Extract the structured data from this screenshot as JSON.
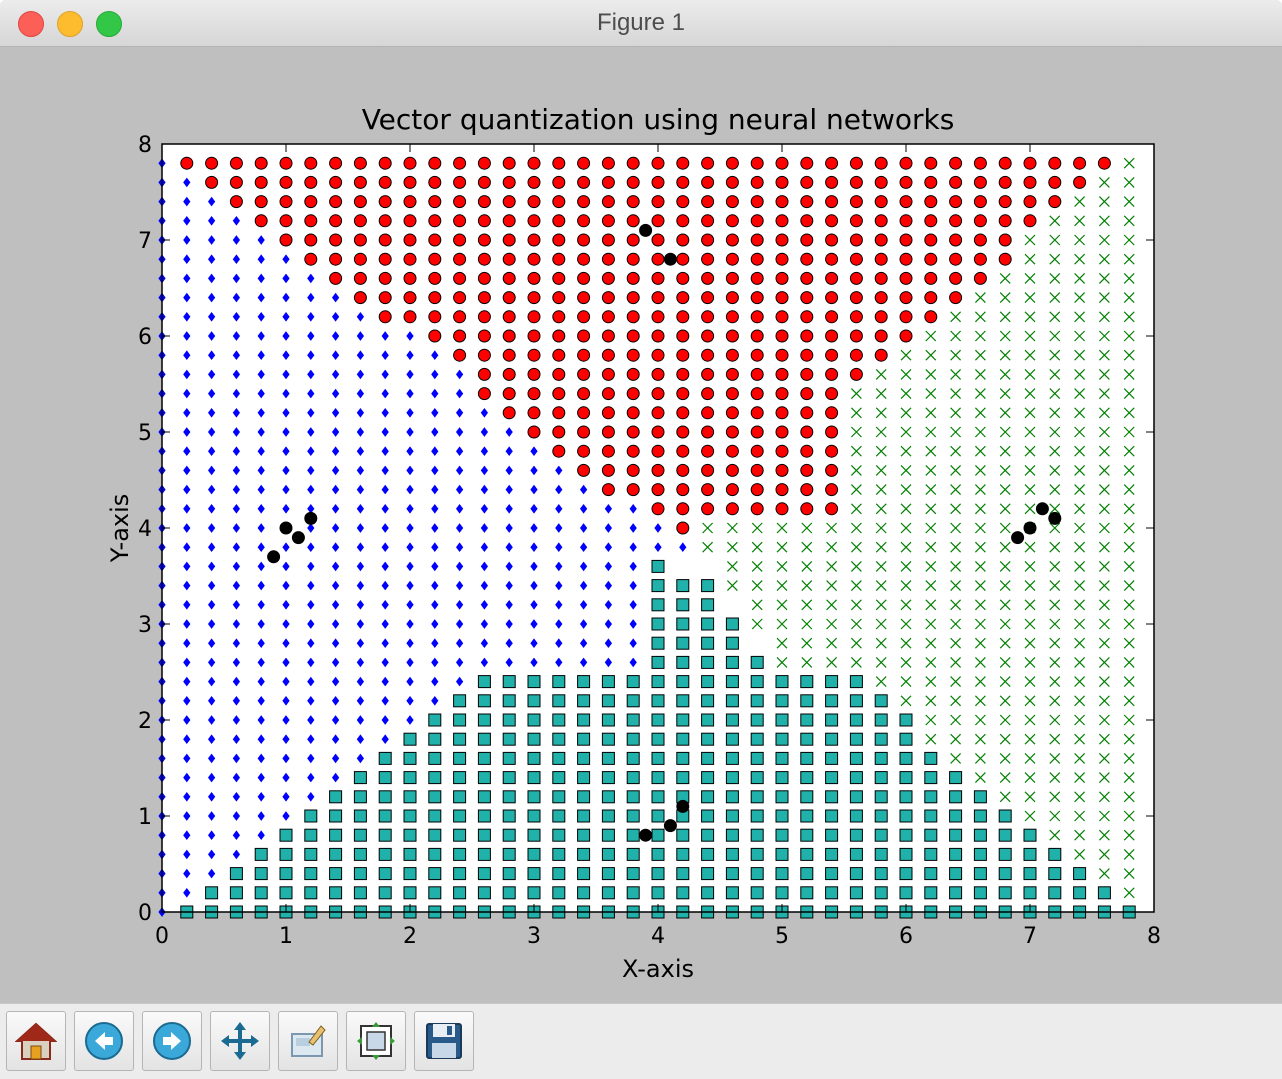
{
  "window": {
    "title": "Figure 1"
  },
  "toolbar": {
    "buttons": [
      {
        "icon": "home-icon"
      },
      {
        "icon": "back-arrow-icon"
      },
      {
        "icon": "forward-arrow-icon"
      },
      {
        "icon": "pan-icon"
      },
      {
        "icon": "zoom-rect-icon"
      },
      {
        "icon": "subplots-config-icon"
      },
      {
        "icon": "save-icon"
      }
    ]
  },
  "chart_data": {
    "type": "scatter",
    "title": "Vector quantization using neural networks",
    "xlabel": "X-axis",
    "ylabel": "Y-axis",
    "xlim": [
      0,
      8
    ],
    "ylim": [
      0,
      8
    ],
    "xticks": [
      "0",
      "1",
      "2",
      "3",
      "4",
      "5",
      "6",
      "7",
      "8"
    ],
    "yticks": [
      "0",
      "1",
      "2",
      "3",
      "4",
      "5",
      "6",
      "7",
      "8"
    ],
    "grid": false,
    "legend": "none",
    "point_grid": {
      "x_start": 0,
      "x_step": 0.2,
      "columns": 40,
      "y_start": 0,
      "y_step": 0.2,
      "rows": 40
    },
    "series": [
      {
        "marker": "circle",
        "color": "#ff0000",
        "rows": [
          {
            "y": 7.8,
            "x_from": 0.2,
            "x_to": 7.6
          },
          {
            "y": 7.6,
            "x_from": 0.4,
            "x_to": 7.4
          },
          {
            "y": 7.4,
            "x_from": 0.6,
            "x_to": 7.2
          },
          {
            "y": 7.2,
            "x_from": 0.8,
            "x_to": 7.0
          },
          {
            "y": 7.0,
            "x_from": 1.0,
            "x_to": 6.8
          },
          {
            "y": 6.8,
            "x_from": 1.2,
            "x_to": 6.8
          },
          {
            "y": 6.6,
            "x_from": 1.4,
            "x_to": 6.6
          },
          {
            "y": 6.4,
            "x_from": 1.6,
            "x_to": 6.4
          },
          {
            "y": 6.2,
            "x_from": 1.8,
            "x_to": 6.2
          },
          {
            "y": 6.0,
            "x_from": 2.2,
            "x_to": 6.0
          },
          {
            "y": 5.8,
            "x_from": 2.4,
            "x_to": 5.8
          },
          {
            "y": 5.6,
            "x_from": 2.6,
            "x_to": 5.6
          },
          {
            "y": 5.4,
            "x_from": 2.6,
            "x_to": 5.4
          },
          {
            "y": 5.2,
            "x_from": 2.8,
            "x_to": 5.4
          },
          {
            "y": 5.0,
            "x_from": 3.0,
            "x_to": 5.4
          },
          {
            "y": 4.8,
            "x_from": 3.2,
            "x_to": 5.4
          },
          {
            "y": 4.6,
            "x_from": 3.4,
            "x_to": 5.4
          },
          {
            "y": 4.4,
            "x_from": 3.6,
            "x_to": 5.4
          },
          {
            "y": 4.2,
            "x_from": 4.0,
            "x_to": 5.4
          },
          {
            "y": 4.0,
            "x_from": 4.2,
            "x_to": 4.2
          }
        ]
      },
      {
        "marker": "x",
        "color": "#008000",
        "rows": [
          {
            "y": 7.8,
            "x_from": 7.8,
            "x_to": 7.8
          },
          {
            "y": 7.6,
            "x_from": 7.6,
            "x_to": 7.8
          },
          {
            "y": 7.4,
            "x_from": 7.4,
            "x_to": 7.8
          },
          {
            "y": 7.2,
            "x_from": 7.2,
            "x_to": 7.8
          },
          {
            "y": 7.0,
            "x_from": 7.0,
            "x_to": 7.8
          },
          {
            "y": 6.8,
            "x_from": 7.0,
            "x_to": 7.8
          },
          {
            "y": 6.6,
            "x_from": 6.8,
            "x_to": 7.8
          },
          {
            "y": 6.4,
            "x_from": 6.6,
            "x_to": 7.8
          },
          {
            "y": 6.2,
            "x_from": 6.4,
            "x_to": 7.8
          },
          {
            "y": 6.0,
            "x_from": 6.2,
            "x_to": 7.8
          },
          {
            "y": 5.8,
            "x_from": 6.0,
            "x_to": 7.8
          },
          {
            "y": 5.6,
            "x_from": 5.8,
            "x_to": 7.8
          },
          {
            "y": 5.4,
            "x_from": 5.6,
            "x_to": 7.8
          },
          {
            "y": 5.2,
            "x_from": 5.6,
            "x_to": 7.8
          },
          {
            "y": 5.0,
            "x_from": 5.6,
            "x_to": 7.8
          },
          {
            "y": 4.8,
            "x_from": 5.6,
            "x_to": 7.8
          },
          {
            "y": 4.6,
            "x_from": 5.6,
            "x_to": 7.8
          },
          {
            "y": 4.4,
            "x_from": 5.6,
            "x_to": 7.8
          },
          {
            "y": 4.2,
            "x_from": 5.6,
            "x_to": 7.8
          },
          {
            "y": 4.0,
            "x_from": 4.4,
            "x_to": 7.8
          },
          {
            "y": 3.8,
            "x_from": 4.4,
            "x_to": 7.8
          },
          {
            "y": 3.6,
            "x_from": 4.6,
            "x_to": 7.8
          },
          {
            "y": 3.4,
            "x_from": 4.6,
            "x_to": 7.8
          },
          {
            "y": 3.2,
            "x_from": 4.8,
            "x_to": 7.8
          },
          {
            "y": 3.0,
            "x_from": 4.8,
            "x_to": 7.8
          },
          {
            "y": 2.8,
            "x_from": 5.0,
            "x_to": 7.8
          },
          {
            "y": 2.6,
            "x_from": 5.0,
            "x_to": 7.8
          },
          {
            "y": 2.4,
            "x_from": 5.8,
            "x_to": 7.8
          },
          {
            "y": 2.2,
            "x_from": 6.0,
            "x_to": 7.8
          },
          {
            "y": 2.0,
            "x_from": 6.2,
            "x_to": 7.8
          },
          {
            "y": 1.8,
            "x_from": 6.2,
            "x_to": 7.8
          },
          {
            "y": 1.6,
            "x_from": 6.4,
            "x_to": 7.8
          },
          {
            "y": 1.4,
            "x_from": 6.6,
            "x_to": 7.8
          },
          {
            "y": 1.2,
            "x_from": 6.8,
            "x_to": 7.8
          },
          {
            "y": 1.0,
            "x_from": 7.0,
            "x_to": 7.8
          },
          {
            "y": 0.8,
            "x_from": 7.2,
            "x_to": 7.8
          },
          {
            "y": 0.6,
            "x_from": 7.4,
            "x_to": 7.8
          },
          {
            "y": 0.4,
            "x_from": 7.6,
            "x_to": 7.8
          },
          {
            "y": 0.2,
            "x_from": 7.8,
            "x_to": 7.8
          }
        ]
      },
      {
        "marker": "square",
        "color": "#20b2aa",
        "rows": [
          {
            "y": 3.6,
            "x_from": 4.0,
            "x_to": 4.0
          },
          {
            "y": 3.4,
            "x_from": 4.0,
            "x_to": 4.4
          },
          {
            "y": 3.2,
            "x_from": 4.0,
            "x_to": 4.4
          },
          {
            "y": 3.0,
            "x_from": 4.0,
            "x_to": 4.6
          },
          {
            "y": 2.8,
            "x_from": 4.0,
            "x_to": 4.6
          },
          {
            "y": 2.6,
            "x_from": 4.0,
            "x_to": 4.8
          },
          {
            "y": 2.4,
            "x_from": 2.6,
            "x_to": 5.6
          },
          {
            "y": 2.2,
            "x_from": 2.4,
            "x_to": 5.8
          },
          {
            "y": 2.0,
            "x_from": 2.2,
            "x_to": 6.0
          },
          {
            "y": 1.8,
            "x_from": 2.0,
            "x_to": 6.0
          },
          {
            "y": 1.6,
            "x_from": 1.8,
            "x_to": 6.2
          },
          {
            "y": 1.4,
            "x_from": 1.6,
            "x_to": 6.4
          },
          {
            "y": 1.2,
            "x_from": 1.4,
            "x_to": 6.6
          },
          {
            "y": 1.0,
            "x_from": 1.2,
            "x_to": 6.8
          },
          {
            "y": 0.8,
            "x_from": 1.0,
            "x_to": 7.0
          },
          {
            "y": 0.6,
            "x_from": 0.8,
            "x_to": 7.2
          },
          {
            "y": 0.4,
            "x_from": 0.6,
            "x_to": 7.4
          },
          {
            "y": 0.2,
            "x_from": 0.4,
            "x_to": 7.6
          },
          {
            "y": 0.0,
            "x_from": 0.2,
            "x_to": 7.8
          }
        ]
      },
      {
        "marker": "diamond",
        "color": "#0000ff",
        "rows": [
          {
            "y": 7.8,
            "x_from": 0.0,
            "x_to": 0.0
          },
          {
            "y": 7.6,
            "x_from": 0.0,
            "x_to": 0.2
          },
          {
            "y": 7.4,
            "x_from": 0.0,
            "x_to": 0.4
          },
          {
            "y": 7.2,
            "x_from": 0.0,
            "x_to": 0.6
          },
          {
            "y": 7.0,
            "x_from": 0.0,
            "x_to": 0.8
          },
          {
            "y": 6.8,
            "x_from": 0.0,
            "x_to": 1.0
          },
          {
            "y": 6.6,
            "x_from": 0.0,
            "x_to": 1.2
          },
          {
            "y": 6.4,
            "x_from": 0.0,
            "x_to": 1.4
          },
          {
            "y": 6.2,
            "x_from": 0.0,
            "x_to": 1.6
          },
          {
            "y": 6.0,
            "x_from": 0.0,
            "x_to": 2.0
          },
          {
            "y": 5.8,
            "x_from": 0.0,
            "x_to": 2.2
          },
          {
            "y": 5.6,
            "x_from": 0.0,
            "x_to": 2.4
          },
          {
            "y": 5.4,
            "x_from": 0.0,
            "x_to": 2.4
          },
          {
            "y": 5.2,
            "x_from": 0.0,
            "x_to": 2.6
          },
          {
            "y": 5.0,
            "x_from": 0.0,
            "x_to": 2.8
          },
          {
            "y": 4.8,
            "x_from": 0.0,
            "x_to": 3.0
          },
          {
            "y": 4.6,
            "x_from": 0.0,
            "x_to": 3.2
          },
          {
            "y": 4.4,
            "x_from": 0.0,
            "x_to": 3.4
          },
          {
            "y": 4.2,
            "x_from": 0.0,
            "x_to": 3.8
          },
          {
            "y": 4.0,
            "x_from": 0.0,
            "x_to": 4.0
          },
          {
            "y": 3.8,
            "x_from": 0.0,
            "x_to": 4.2
          },
          {
            "y": 3.6,
            "x_from": 0.0,
            "x_to": 3.8
          },
          {
            "y": 3.4,
            "x_from": 0.0,
            "x_to": 3.8
          },
          {
            "y": 3.2,
            "x_from": 0.0,
            "x_to": 3.8
          },
          {
            "y": 3.0,
            "x_from": 0.0,
            "x_to": 3.8
          },
          {
            "y": 2.8,
            "x_from": 0.0,
            "x_to": 3.8
          },
          {
            "y": 2.6,
            "x_from": 0.0,
            "x_to": 3.8
          },
          {
            "y": 2.4,
            "x_from": 0.0,
            "x_to": 2.4
          },
          {
            "y": 2.2,
            "x_from": 0.0,
            "x_to": 2.2
          },
          {
            "y": 2.0,
            "x_from": 0.0,
            "x_to": 2.0
          },
          {
            "y": 1.8,
            "x_from": 0.0,
            "x_to": 1.8
          },
          {
            "y": 1.6,
            "x_from": 0.0,
            "x_to": 1.6
          },
          {
            "y": 1.4,
            "x_from": 0.0,
            "x_to": 1.4
          },
          {
            "y": 1.2,
            "x_from": 0.0,
            "x_to": 1.2
          },
          {
            "y": 1.0,
            "x_from": 0.0,
            "x_to": 1.0
          },
          {
            "y": 0.8,
            "x_from": 0.0,
            "x_to": 0.8
          },
          {
            "y": 0.6,
            "x_from": 0.0,
            "x_to": 0.6
          },
          {
            "y": 0.4,
            "x_from": 0.0,
            "x_to": 0.4
          },
          {
            "y": 0.2,
            "x_from": 0.0,
            "x_to": 0.2
          },
          {
            "y": 0.0,
            "x_from": 0.0,
            "x_to": 0.0
          }
        ]
      }
    ],
    "centroids": {
      "marker": "circle",
      "color": "#000000",
      "points": [
        [
          0.9,
          3.7
        ],
        [
          1.1,
          3.9
        ],
        [
          1.2,
          4.1
        ],
        [
          1.0,
          4.0
        ],
        [
          3.9,
          7.1
        ],
        [
          4.1,
          6.8
        ],
        [
          6.9,
          3.9
        ],
        [
          7.0,
          4.0
        ],
        [
          7.1,
          4.2
        ],
        [
          7.2,
          4.1
        ],
        [
          3.9,
          0.8
        ],
        [
          4.1,
          0.9
        ],
        [
          4.2,
          1.1
        ]
      ]
    }
  }
}
